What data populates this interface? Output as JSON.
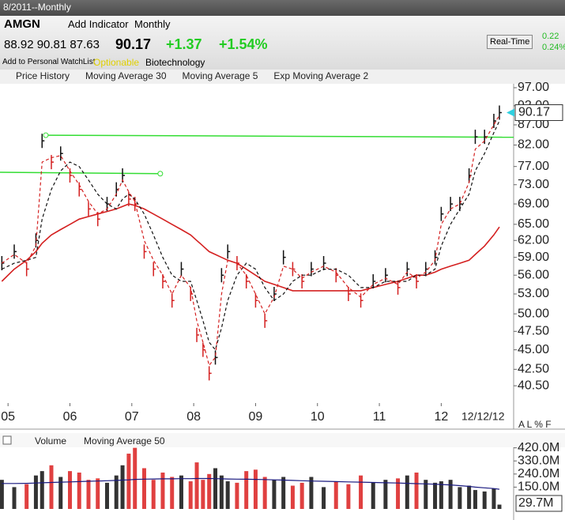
{
  "header": {
    "period": "8/2011--Monthly",
    "symbol": "AMGN",
    "add_indicator": "Add Indicator",
    "interval": "Monthly",
    "ohl": "88.92 90.81 87.63",
    "last": "90.17",
    "change": "+1.37",
    "change_pct": "+1.54%",
    "watchlist": "Add to Personal WatchList",
    "optionable": "Optionable",
    "industry": "Biotechnology",
    "realtime": "Real-Time",
    "rt_change": "0.22",
    "rt_pct": "0.24%",
    "date": "12/12/12",
    "scale_modes": "A L % F",
    "volume_last": "29.7M"
  },
  "chart_data": [
    {
      "type": "line",
      "log_scale": true,
      "x": [
        2004.9,
        2005.1,
        2005.3,
        2005.45,
        2005.55,
        2005.7,
        2005.85,
        2006.0,
        2006.15,
        2006.3,
        2006.45,
        2006.6,
        2006.75,
        2006.85,
        2006.95,
        2007.05,
        2007.2,
        2007.35,
        2007.5,
        2007.65,
        2007.8,
        2007.95,
        2008.05,
        2008.15,
        2008.25,
        2008.35,
        2008.45,
        2008.55,
        2008.7,
        2008.85,
        2009.0,
        2009.15,
        2009.3,
        2009.45,
        2009.6,
        2009.75,
        2009.9,
        2010.1,
        2010.3,
        2010.5,
        2010.7,
        2010.9,
        2011.1,
        2011.3,
        2011.45,
        2011.6,
        2011.75,
        2011.9,
        2012.0,
        2012.15,
        2012.3,
        2012.45,
        2012.55,
        2012.7,
        2012.85,
        2012.94
      ],
      "xlim": [
        2004.87,
        2013.17
      ],
      "xticks": [
        {
          "value": 2005,
          "label": "05"
        },
        {
          "value": 2006,
          "label": "06"
        },
        {
          "value": 2007,
          "label": "07"
        },
        {
          "value": 2008,
          "label": "08"
        },
        {
          "value": 2009,
          "label": "09"
        },
        {
          "value": 2010,
          "label": "10"
        },
        {
          "value": 2011,
          "label": "11"
        },
        {
          "value": 2012,
          "label": "12"
        }
      ],
      "ylim": [
        38.5,
        99.5
      ],
      "yticks": [
        {
          "value": 97,
          "label": "97.00"
        },
        {
          "value": 92,
          "label": "92.00"
        },
        {
          "value": 87,
          "label": "87.00"
        },
        {
          "value": 82,
          "label": "82.00"
        },
        {
          "value": 77,
          "label": "77.00"
        },
        {
          "value": 73,
          "label": "73.00"
        },
        {
          "value": 69,
          "label": "69.00"
        },
        {
          "value": 65,
          "label": "65.00"
        },
        {
          "value": 62,
          "label": "62.00"
        },
        {
          "value": 59,
          "label": "59.00"
        },
        {
          "value": 56,
          "label": "56.00"
        },
        {
          "value": 53,
          "label": "53.00"
        },
        {
          "value": 50,
          "label": "50.00"
        },
        {
          "value": 47.5,
          "label": "47.50"
        },
        {
          "value": 45,
          "label": "45.00"
        },
        {
          "value": 42.5,
          "label": "42.50"
        },
        {
          "value": 40.5,
          "label": "40.50"
        }
      ],
      "series": [
        {
          "name": "Price History",
          "color": "#1a8a1a",
          "style": "ticks",
          "values": [
            58,
            60,
            57,
            62,
            83,
            78,
            80,
            75,
            72,
            68,
            66,
            69,
            72,
            75,
            70,
            69,
            60,
            57,
            55,
            52,
            57,
            53,
            47,
            45,
            42,
            44,
            56,
            60,
            58,
            55,
            52,
            49,
            53,
            59,
            57,
            55,
            57,
            58,
            56,
            53,
            52,
            55,
            56,
            54,
            57,
            55,
            57,
            59,
            67,
            69,
            69,
            75,
            84,
            84,
            88,
            90.17
          ]
        },
        {
          "name": "Moving Average 30",
          "color": "#d42020",
          "style": "solid",
          "values": [
            55,
            57,
            58.5,
            60,
            61.5,
            63,
            64,
            65,
            66,
            66.5,
            67,
            67.5,
            68,
            68.5,
            69,
            68.7,
            68,
            67,
            66,
            65,
            64,
            63,
            62,
            61,
            60,
            59.5,
            59,
            58.5,
            58,
            57,
            56,
            55,
            54.5,
            54,
            53.5,
            53.5,
            53.5,
            53.5,
            53.5,
            53.5,
            53.5,
            54,
            54.5,
            55,
            55.5,
            56,
            56,
            56.5,
            57,
            57.5,
            58,
            58.5,
            59.5,
            61,
            63,
            64.5
          ]
        },
        {
          "name": "Moving Average 5",
          "color": "#111111",
          "style": "dashed",
          "values": [
            57,
            58,
            58.5,
            59,
            66,
            72,
            76,
            78,
            77,
            74,
            71,
            69,
            68,
            70,
            71,
            70,
            67,
            63,
            59,
            56,
            55,
            55,
            52,
            49,
            46,
            45,
            48,
            52,
            56,
            58,
            57,
            54,
            52,
            53,
            55,
            56,
            56,
            57,
            57,
            56,
            54,
            54,
            55,
            55,
            55,
            56,
            56,
            57,
            61,
            65,
            68,
            71,
            76,
            80,
            85,
            88
          ]
        },
        {
          "name": "Exp Moving Average 2",
          "color": "#d42020",
          "style": "dashed",
          "values": [
            58,
            59.5,
            58,
            61,
            78,
            79,
            79.5,
            76,
            73,
            69.5,
            67,
            68,
            71,
            74,
            71.5,
            69.5,
            62,
            58.5,
            56,
            53,
            56,
            54,
            49,
            46,
            43,
            44,
            53,
            58.5,
            58,
            56,
            53,
            50,
            52.5,
            57.5,
            57,
            55.5,
            56.5,
            57.5,
            56.5,
            54,
            52.5,
            54.5,
            55.5,
            54.5,
            56.5,
            55.5,
            56.5,
            58.5,
            65,
            68,
            69,
            73.5,
            81,
            83,
            87,
            89.5
          ]
        }
      ],
      "trendlines": [
        {
          "color": "#33dd33",
          "x": [
            2005.61,
            2013.17
          ],
          "y": [
            84.4,
            83.9
          ]
        },
        {
          "color": "#33dd33",
          "x": [
            2004.87,
            2007.46
          ],
          "y": [
            75.7,
            75.4
          ]
        }
      ]
    },
    {
      "type": "bar",
      "xlim": [
        2004.87,
        2013.17
      ],
      "ylim": [
        0,
        440
      ],
      "yticks": [
        {
          "value": 420,
          "label": "420.0M"
        },
        {
          "value": 330,
          "label": "330.0M"
        },
        {
          "value": 240,
          "label": "240.0M"
        },
        {
          "value": 150,
          "label": "150.0M"
        }
      ],
      "up_color": "#e04040",
      "down_color": "#333333",
      "series": [
        {
          "name": "Volume",
          "color": "#e04040",
          "values": [
            200,
            150,
            170,
            230,
            260,
            300,
            220,
            260,
            250,
            200,
            210,
            180,
            230,
            300,
            380,
            420,
            280,
            200,
            250,
            220,
            230,
            190,
            320,
            200,
            240,
            280,
            230,
            190,
            180,
            260,
            270,
            220,
            200,
            220,
            160,
            180,
            220,
            150,
            190,
            170,
            230,
            180,
            200,
            210,
            230,
            250,
            200,
            180,
            190,
            200,
            150,
            160,
            130,
            120,
            140,
            29.7
          ]
        },
        {
          "name": "Moving Average 50",
          "color": "#1a1a80",
          "values": [
            175,
            175,
            176,
            178,
            180,
            182,
            184,
            186,
            188,
            190,
            192,
            194,
            196,
            198,
            200,
            203,
            205,
            206,
            207,
            207,
            208,
            208,
            209,
            209,
            209,
            208,
            207,
            206,
            205,
            204,
            203,
            202,
            200,
            198,
            196,
            194,
            192,
            190,
            188,
            186,
            184,
            182,
            180,
            178,
            176,
            174,
            172,
            170,
            168,
            165,
            160,
            155,
            150,
            145,
            140,
            135
          ]
        }
      ]
    }
  ]
}
